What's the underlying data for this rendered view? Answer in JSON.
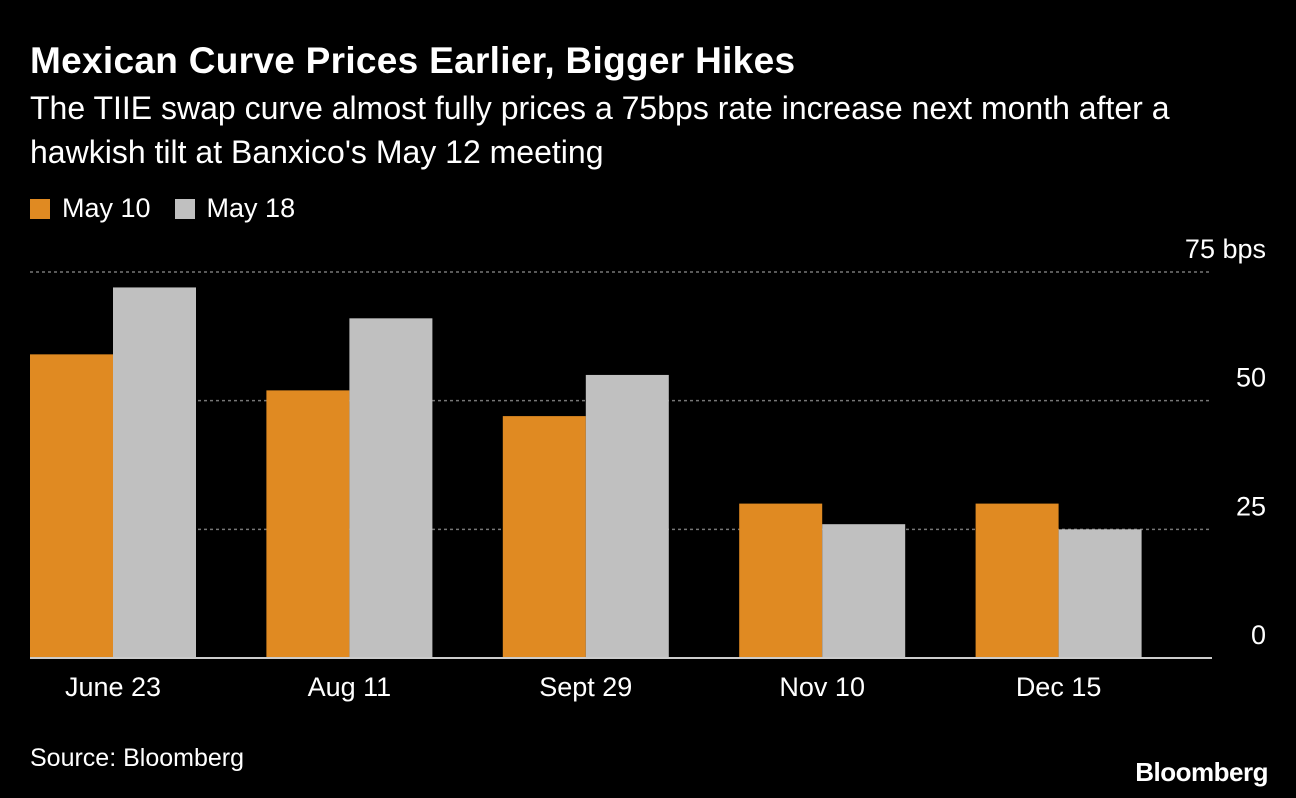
{
  "title": "Mexican Curve Prices Earlier, Bigger Hikes",
  "subtitle": "The TIIE swap curve almost fully prices a 75bps rate increase next month after a hawkish tilt at Banxico's May 12 meeting",
  "source": "Source: Bloomberg",
  "brand": "Bloomberg",
  "colors": {
    "background": "#000000",
    "may10": "#e08a22",
    "may18": "#c0c0c0",
    "grid": "#777777",
    "axis": "#cccccc"
  },
  "chart_data": {
    "type": "bar",
    "categories": [
      "June 23",
      "Aug 11",
      "Sept 29",
      "Nov 10",
      "Dec 15"
    ],
    "series": [
      {
        "name": "May 10",
        "values": [
          59,
          52,
          47,
          30,
          30
        ]
      },
      {
        "name": "May 18",
        "values": [
          72,
          66,
          55,
          26,
          25
        ]
      }
    ],
    "ylim": [
      0,
      75
    ],
    "yticks": [
      0,
      25,
      50,
      75
    ],
    "ytick_labels": [
      "0",
      "25",
      "50",
      "75 bps"
    ],
    "y_axis_side": "right",
    "grid": true,
    "legend_position": "top-left"
  }
}
